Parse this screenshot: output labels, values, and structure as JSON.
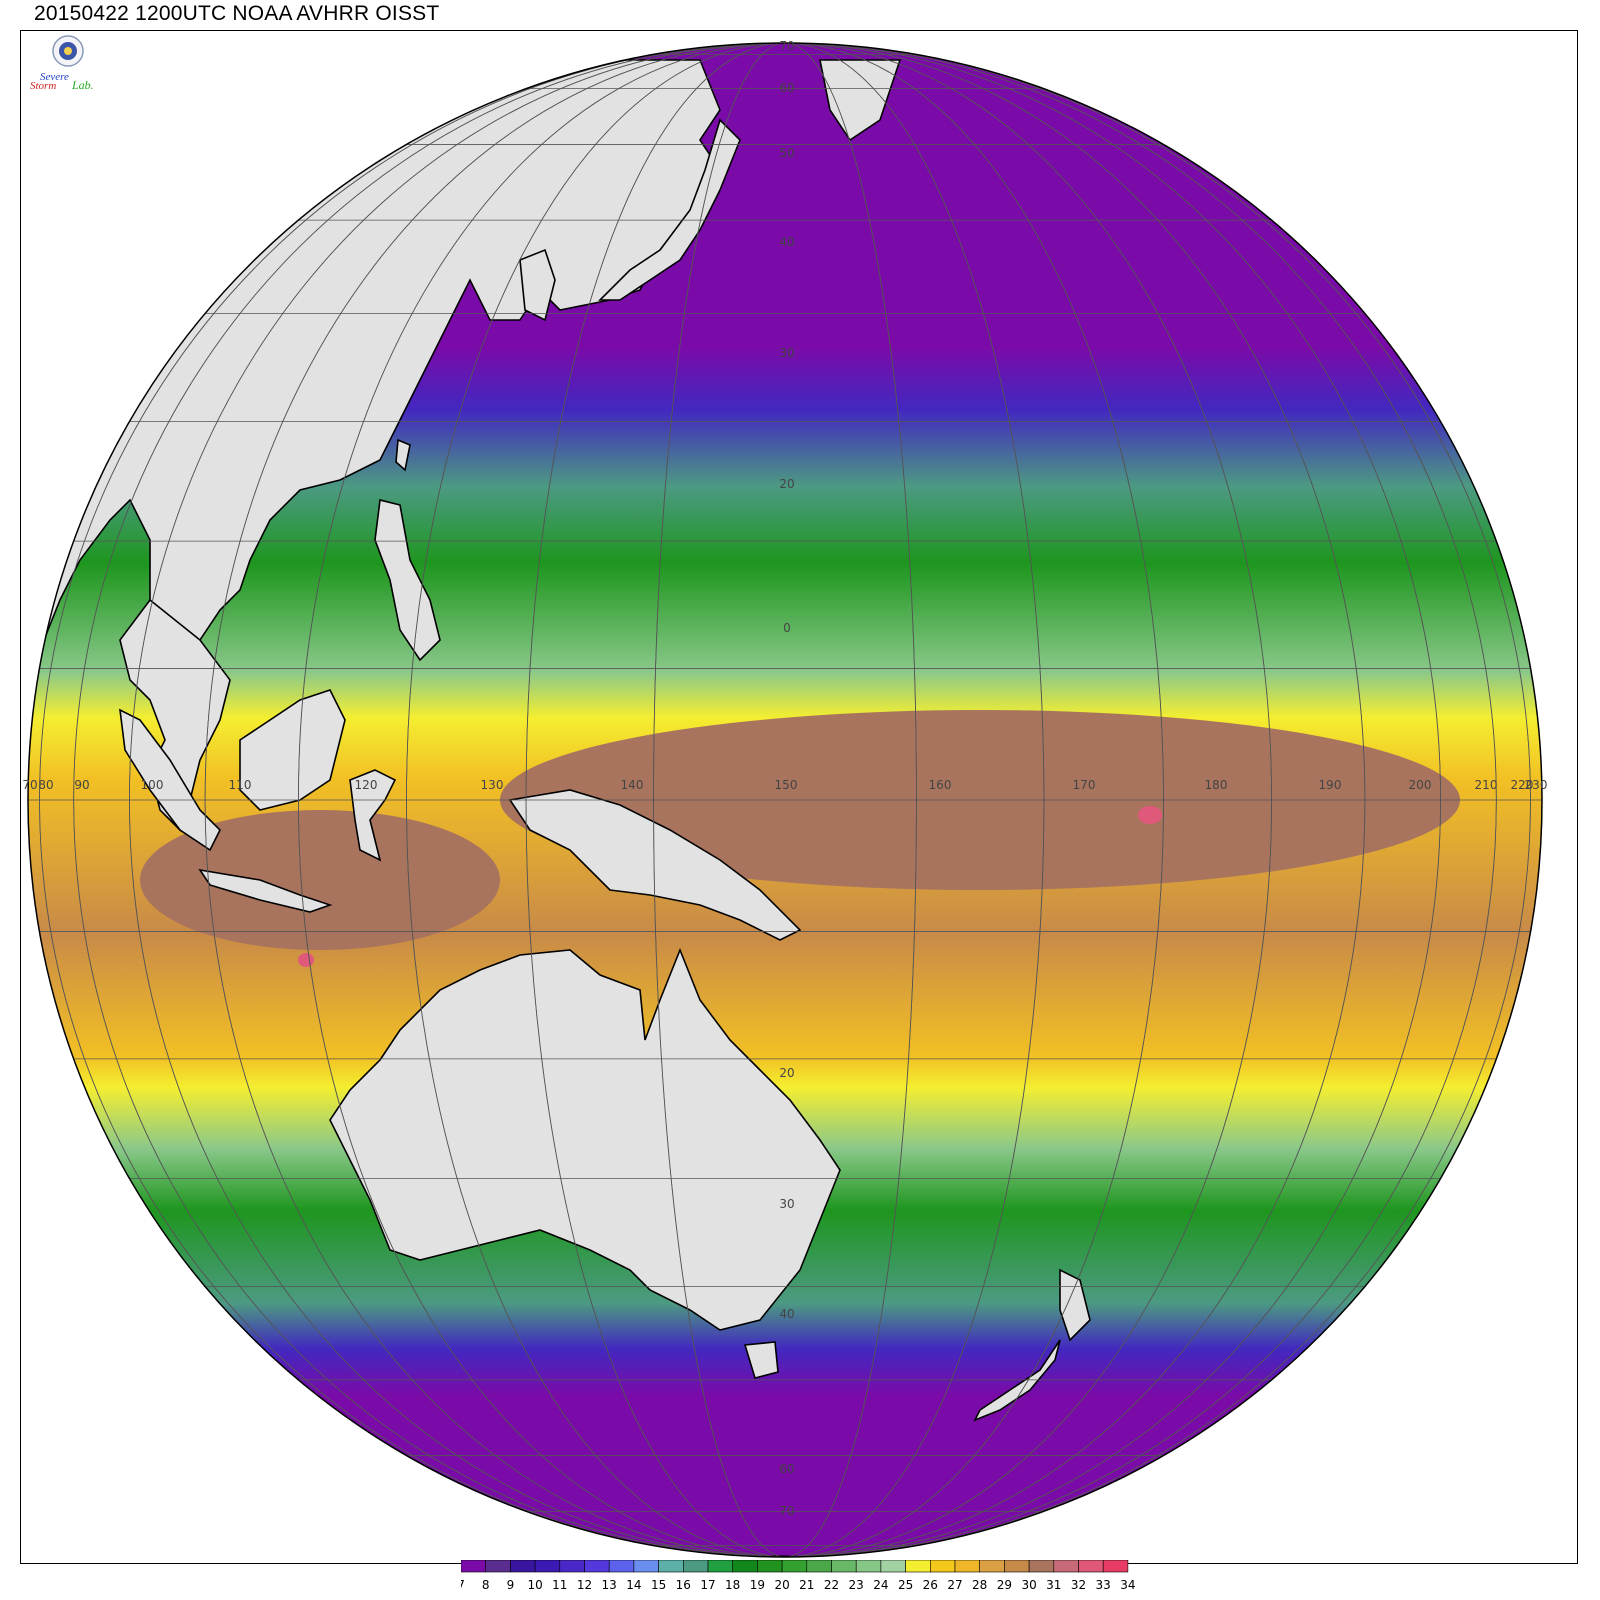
{
  "title": "20150422 1200UTC NOAA AVHRR OISST",
  "logo": {
    "line1": "Severe",
    "line2": "Storm",
    "line3": "Lab."
  },
  "colorbar": {
    "ticks": [
      "7",
      "8",
      "9",
      "10",
      "11",
      "12",
      "13",
      "14",
      "15",
      "16",
      "17",
      "18",
      "19",
      "20",
      "21",
      "22",
      "23",
      "24",
      "25",
      "26",
      "27",
      "28",
      "29",
      "30",
      "31",
      "32",
      "33",
      "34"
    ],
    "colors": [
      "#7a0ba8",
      "#5b2d90",
      "#3a15a0",
      "#3d19b4",
      "#4a28c8",
      "#5538dc",
      "#5d62ec",
      "#6a8ef0",
      "#5cb0a8",
      "#4c9a82",
      "#20a040",
      "#12881c",
      "#22921e",
      "#34a030",
      "#4aa848",
      "#68b868",
      "#86c686",
      "#a2d2a2",
      "#f4ee30",
      "#f4c81a",
      "#eeb628",
      "#dca044",
      "#c68a48",
      "#a8745e",
      "#c86a78",
      "#e05878",
      "#e83c64"
    ],
    "colors_note": ""
  },
  "lat_labels": [
    "70",
    "60",
    "50",
    "40",
    "30",
    "20",
    "0",
    "20",
    "30",
    "40",
    "60",
    "70"
  ],
  "lon_labels": [
    "70",
    "80",
    "90",
    "100",
    "110",
    "120",
    "130",
    "140",
    "150",
    "160",
    "170",
    "180",
    "190",
    "200",
    "210",
    "220",
    "230"
  ],
  "palette": {
    "land": "#e2e2e2",
    "polar": "#7a0ba8",
    "cold_blue": "#4228c0",
    "teal": "#4c9a82",
    "green": "#1e961e",
    "light_green": "#8ac88a",
    "yellow": "#f4ee30",
    "orange": "#f2c024",
    "tan": "#c88a48",
    "warm_brown": "#a8745e",
    "hot_pink": "#e0587a"
  }
}
